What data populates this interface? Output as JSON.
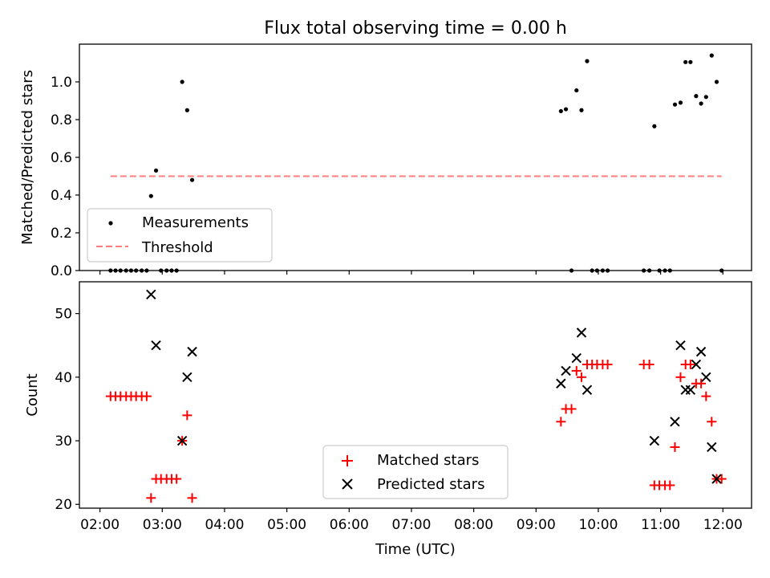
{
  "title": "Flux total observing time = 0.00 h",
  "colors": {
    "measurement": "#000000",
    "threshold": "#ff7f7f",
    "matched": "#ff0000",
    "predicted": "#000000",
    "axes": "#000000",
    "background": "#ffffff"
  },
  "chart_data": [
    {
      "type": "scatter",
      "title": "Flux total observing time = 0.00 h",
      "xlabel": "",
      "ylabel": "Matched/Predicted stars",
      "x_unit": "hours UTC",
      "xlim": [
        1.67,
        12.46
      ],
      "ylim": [
        0.0,
        1.2
      ],
      "x_ticks": [
        2,
        3,
        4,
        5,
        6,
        7,
        8,
        9,
        10,
        11,
        12
      ],
      "y_ticks": [
        0.0,
        0.2,
        0.4,
        0.6,
        0.8,
        1.0
      ],
      "y_tick_labels": [
        "0.0",
        "0.2",
        "0.4",
        "0.6",
        "0.8",
        "1.0"
      ],
      "grid": false,
      "legend": {
        "position": "lower-left",
        "entries": [
          "Measurements",
          "Threshold"
        ]
      },
      "series": [
        {
          "name": "Measurements",
          "marker": "dot",
          "points": [
            [
              2.17,
              0.0
            ],
            [
              2.25,
              0.0
            ],
            [
              2.33,
              0.0
            ],
            [
              2.42,
              0.0
            ],
            [
              2.5,
              0.0
            ],
            [
              2.58,
              0.0
            ],
            [
              2.67,
              0.0
            ],
            [
              2.75,
              0.0
            ],
            [
              2.82,
              0.395
            ],
            [
              2.9,
              0.53
            ],
            [
              2.98,
              0.0
            ],
            [
              3.07,
              0.0
            ],
            [
              3.15,
              0.0
            ],
            [
              3.23,
              0.0
            ],
            [
              3.32,
              1.0
            ],
            [
              3.4,
              0.85
            ],
            [
              3.48,
              0.48
            ],
            [
              9.4,
              0.845
            ],
            [
              9.48,
              0.855
            ],
            [
              9.57,
              0.0
            ],
            [
              9.65,
              0.955
            ],
            [
              9.73,
              0.85
            ],
            [
              9.82,
              1.11
            ],
            [
              9.9,
              0.0
            ],
            [
              9.98,
              0.0
            ],
            [
              10.07,
              0.0
            ],
            [
              10.15,
              0.0
            ],
            [
              10.73,
              0.0
            ],
            [
              10.82,
              0.0
            ],
            [
              10.9,
              0.765
            ],
            [
              10.98,
              0.0
            ],
            [
              11.07,
              0.0
            ],
            [
              11.15,
              0.0
            ],
            [
              11.23,
              0.88
            ],
            [
              11.32,
              0.89
            ],
            [
              11.4,
              1.105
            ],
            [
              11.48,
              1.105
            ],
            [
              11.57,
              0.925
            ],
            [
              11.65,
              0.885
            ],
            [
              11.73,
              0.92
            ],
            [
              11.82,
              1.14
            ],
            [
              11.9,
              1.0
            ],
            [
              11.98,
              0.0
            ]
          ]
        },
        {
          "name": "Threshold",
          "line": "dashed",
          "points": [
            [
              2.17,
              0.5
            ],
            [
              11.98,
              0.5
            ]
          ]
        }
      ]
    },
    {
      "type": "scatter",
      "xlabel": "Time (UTC)",
      "ylabel": "Count",
      "x_unit": "hours UTC",
      "xlim": [
        1.67,
        12.46
      ],
      "ylim": [
        19.4,
        55.0
      ],
      "x_ticks": [
        2,
        3,
        4,
        5,
        6,
        7,
        8,
        9,
        10,
        11,
        12
      ],
      "x_tick_labels": [
        "02:00",
        "03:00",
        "04:00",
        "05:00",
        "06:00",
        "07:00",
        "08:00",
        "09:00",
        "10:00",
        "11:00",
        "12:00"
      ],
      "y_ticks": [
        20,
        30,
        40,
        50
      ],
      "y_tick_labels": [
        "20",
        "30",
        "40",
        "50"
      ],
      "grid": false,
      "legend": {
        "position": "lower-center",
        "entries": [
          "Matched stars",
          "Predicted stars"
        ]
      },
      "series": [
        {
          "name": "Matched stars",
          "marker": "plus",
          "points": [
            [
              2.17,
              37
            ],
            [
              2.25,
              37
            ],
            [
              2.33,
              37
            ],
            [
              2.42,
              37
            ],
            [
              2.5,
              37
            ],
            [
              2.58,
              37
            ],
            [
              2.67,
              37
            ],
            [
              2.75,
              37
            ],
            [
              2.82,
              21
            ],
            [
              2.9,
              24
            ],
            [
              2.98,
              24
            ],
            [
              3.07,
              24
            ],
            [
              3.15,
              24
            ],
            [
              3.23,
              24
            ],
            [
              3.32,
              30
            ],
            [
              3.4,
              34
            ],
            [
              3.48,
              21
            ],
            [
              9.4,
              33
            ],
            [
              9.48,
              35
            ],
            [
              9.57,
              35
            ],
            [
              9.65,
              41
            ],
            [
              9.73,
              40
            ],
            [
              9.82,
              42
            ],
            [
              9.9,
              42
            ],
            [
              9.98,
              42
            ],
            [
              10.07,
              42
            ],
            [
              10.15,
              42
            ],
            [
              10.73,
              42
            ],
            [
              10.82,
              42
            ],
            [
              10.9,
              23
            ],
            [
              10.98,
              23
            ],
            [
              11.07,
              23
            ],
            [
              11.15,
              23
            ],
            [
              11.23,
              29
            ],
            [
              11.32,
              40
            ],
            [
              11.4,
              42
            ],
            [
              11.48,
              42
            ],
            [
              11.57,
              39
            ],
            [
              11.65,
              39
            ],
            [
              11.73,
              37
            ],
            [
              11.82,
              33
            ],
            [
              11.9,
              24
            ],
            [
              11.98,
              24
            ]
          ]
        },
        {
          "name": "Predicted stars",
          "marker": "x",
          "points": [
            [
              2.82,
              53
            ],
            [
              2.9,
              45
            ],
            [
              3.32,
              30
            ],
            [
              3.4,
              40
            ],
            [
              3.48,
              44
            ],
            [
              9.4,
              39
            ],
            [
              9.48,
              41
            ],
            [
              9.65,
              43
            ],
            [
              9.73,
              47
            ],
            [
              9.82,
              38
            ],
            [
              10.9,
              30
            ],
            [
              11.23,
              33
            ],
            [
              11.32,
              45
            ],
            [
              11.4,
              38
            ],
            [
              11.48,
              38
            ],
            [
              11.57,
              42
            ],
            [
              11.65,
              44
            ],
            [
              11.73,
              40
            ],
            [
              11.82,
              29
            ],
            [
              11.9,
              24
            ]
          ]
        }
      ]
    }
  ]
}
